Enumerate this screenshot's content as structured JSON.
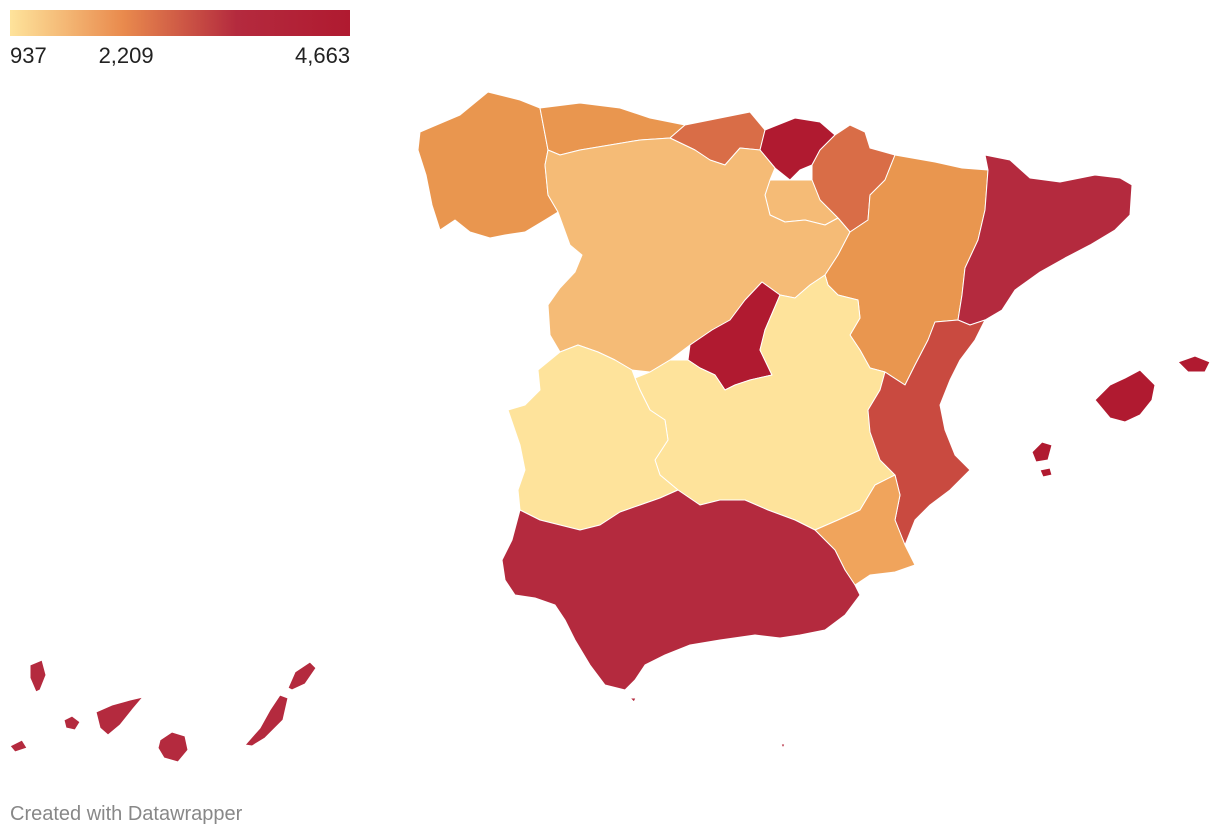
{
  "legend": {
    "min_label": "937",
    "mid_label": "2,209",
    "max_label": "4,663",
    "min_value": 937,
    "mid_value": 2209,
    "max_value": 4663,
    "colors": [
      "#fee39b",
      "#e98a4d",
      "#b42a3e",
      "#b01a30"
    ]
  },
  "credit": "Created with Datawrapper",
  "regions": [
    {
      "id": "galicia",
      "color": "#e9964f"
    },
    {
      "id": "asturias",
      "color": "#e9964f"
    },
    {
      "id": "cantabria",
      "color": "#d96d47"
    },
    {
      "id": "basque-country",
      "color": "#b01a30"
    },
    {
      "id": "navarra",
      "color": "#d96d47"
    },
    {
      "id": "la-rioja",
      "color": "#f5bb76"
    },
    {
      "id": "castilla-y-leon",
      "color": "#f5bb76"
    },
    {
      "id": "aragon",
      "color": "#e9964f"
    },
    {
      "id": "catalonia",
      "color": "#b42a3e"
    },
    {
      "id": "madrid",
      "color": "#b01a30"
    },
    {
      "id": "castilla-la-mancha",
      "color": "#fee39b"
    },
    {
      "id": "extremadura",
      "color": "#fee39b"
    },
    {
      "id": "valencia",
      "color": "#c94a40"
    },
    {
      "id": "murcia",
      "color": "#f0a45c"
    },
    {
      "id": "andalusia",
      "color": "#b42a3e"
    },
    {
      "id": "balearic-islands",
      "color": "#b01a30"
    },
    {
      "id": "canary-islands",
      "color": "#b42a3e"
    },
    {
      "id": "ceuta",
      "color": "#b42a3e"
    },
    {
      "id": "melilla",
      "color": "#b42a3e"
    }
  ]
}
